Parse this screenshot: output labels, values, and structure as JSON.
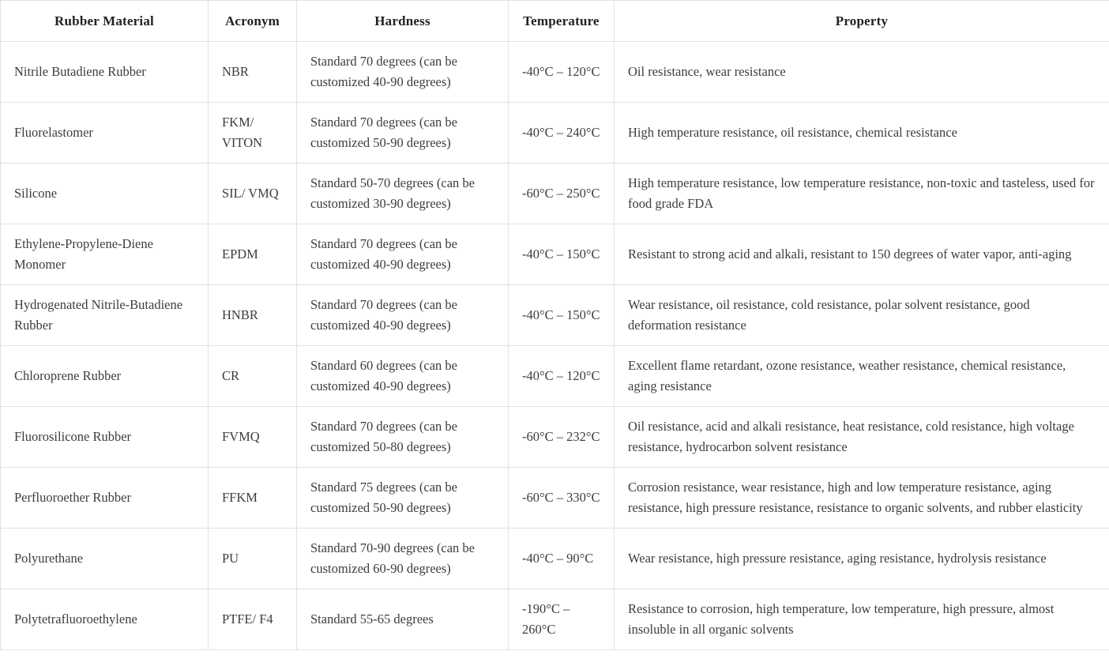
{
  "table": {
    "columns": [
      {
        "label": "Rubber Material"
      },
      {
        "label": "Acronym"
      },
      {
        "label": "Hardness"
      },
      {
        "label": "Temperature"
      },
      {
        "label": "Property"
      }
    ],
    "rows": [
      {
        "material": "Nitrile Butadiene Rubber",
        "acronym": "NBR",
        "hardness": "Standard 70 degrees (can be customized 40-90 degrees)",
        "temperature": "-40°C – 120°C",
        "property": "Oil resistance, wear resistance"
      },
      {
        "material": "Fluorelastomer",
        "acronym": "FKM/ VITON",
        "hardness": "Standard 70 degrees (can be customized 50-90 degrees)",
        "temperature": "-40°C – 240°C",
        "property": "High temperature resistance, oil resistance, chemical resistance"
      },
      {
        "material": "Silicone",
        "acronym": "SIL/ VMQ",
        "hardness": "Standard 50-70 degrees (can be customized 30-90 degrees)",
        "temperature": "-60°C – 250°C",
        "property": "High temperature resistance, low temperature resistance, non-toxic and tasteless, used for food grade FDA"
      },
      {
        "material": "Ethylene-Propylene-Diene Monomer",
        "acronym": "EPDM",
        "hardness": "Standard 70 degrees (can be customized 40-90 degrees)",
        "temperature": "-40°C – 150°C",
        "property": "Resistant to strong acid and alkali, resistant to 150 degrees of water vapor, anti-aging"
      },
      {
        "material": "Hydrogenated Nitrile-Butadiene Rubber",
        "acronym": "HNBR",
        "hardness": "Standard 70 degrees (can be customized 40-90 degrees)",
        "temperature": "-40°C – 150°C",
        "property": "Wear resistance, oil resistance, cold resistance, polar solvent resistance, good deformation resistance"
      },
      {
        "material": "Chloroprene Rubber",
        "acronym": "CR",
        "hardness": "Standard 60 degrees (can be customized 40-90 degrees)",
        "temperature": "-40°C – 120°C",
        "property": "Excellent flame retardant, ozone resistance, weather resistance, chemical resistance, aging resistance"
      },
      {
        "material": "Fluorosilicone Rubber",
        "acronym": "FVMQ",
        "hardness": "Standard 70 degrees (can be customized 50-80 degrees)",
        "temperature": "-60°C – 232°C",
        "property": "Oil resistance, acid and alkali resistance, heat resistance, cold resistance, high voltage resistance, hydrocarbon solvent resistance"
      },
      {
        "material": "Perfluoroether Rubber",
        "acronym": "FFKM",
        "hardness": "Standard 75 degrees (can be customized 50-90 degrees)",
        "temperature": "-60°C – 330°C",
        "property": "Corrosion resistance, wear resistance, high and low temperature resistance, aging resistance, high pressure resistance, resistance to organic solvents, and rubber elasticity"
      },
      {
        "material": "Polyurethane",
        "acronym": "PU",
        "hardness": "Standard 70-90 degrees (can be customized 60-90 degrees)",
        "temperature": "-40°C – 90°C",
        "property": "Wear resistance, high pressure resistance, aging resistance, hydrolysis resistance"
      },
      {
        "material": "Polytetrafluoroethylene",
        "acronym": "PTFE/ F4",
        "hardness": "Standard 55-65 degrees",
        "temperature": "-190°C – 260°C",
        "property": "Resistance to corrosion, high temperature, low temperature, high pressure, almost insoluble in all organic solvents"
      }
    ]
  },
  "colors": {
    "border": "#e1e1e1",
    "header_text": "#222222",
    "body_text": "#3d3d3d",
    "background": "#ffffff"
  }
}
